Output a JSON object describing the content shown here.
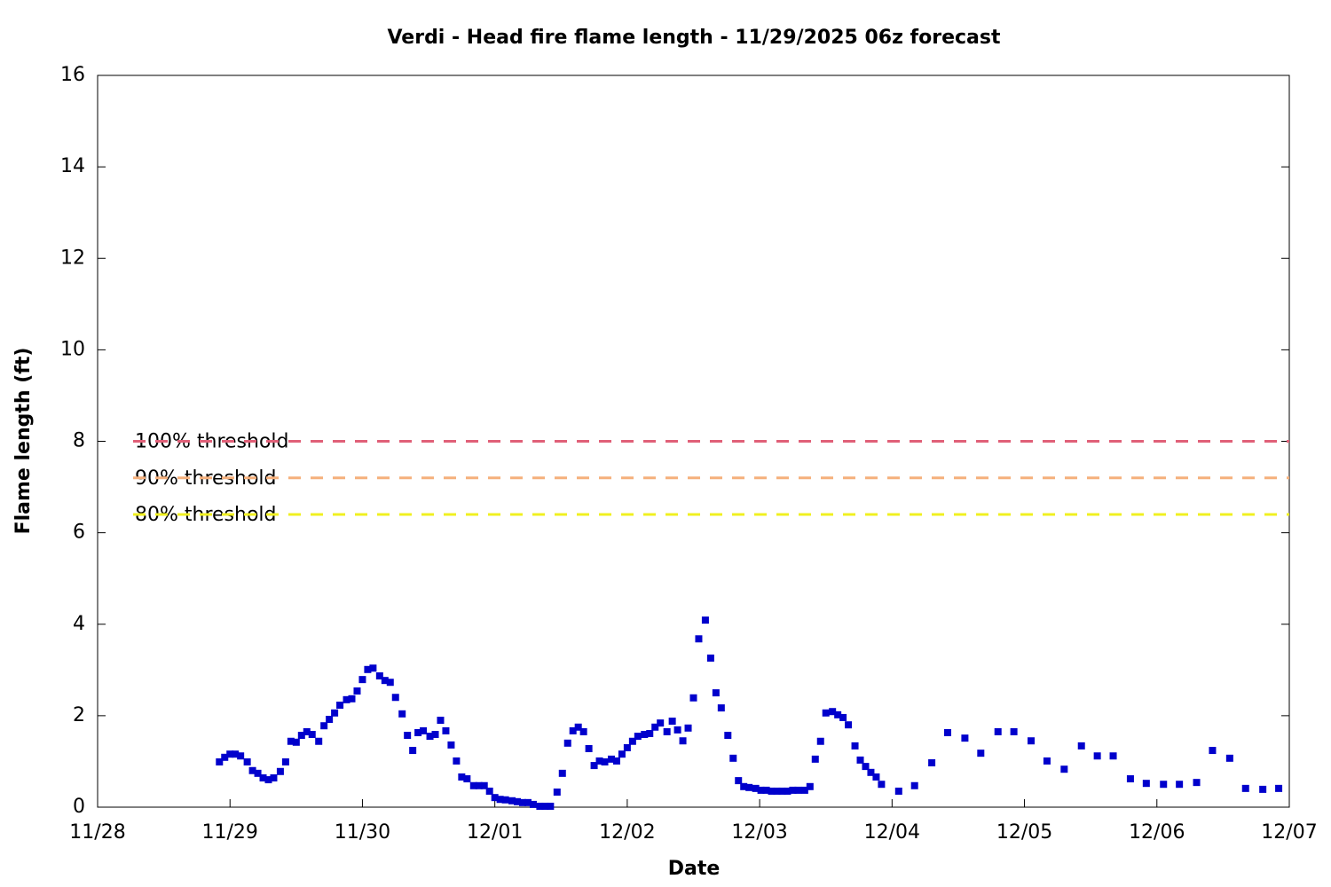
{
  "chart_data": {
    "type": "scatter",
    "title": "Verdi - Head fire flame length - 11/29/2025 06z forecast",
    "xlabel": "Date",
    "ylabel": "Flame length (ft)",
    "xlim": [
      0,
      9
    ],
    "xticks": [
      {
        "value": 0,
        "label": "11/28"
      },
      {
        "value": 1,
        "label": "11/29"
      },
      {
        "value": 2,
        "label": "11/30"
      },
      {
        "value": 3,
        "label": "12/01"
      },
      {
        "value": 4,
        "label": "12/02"
      },
      {
        "value": 5,
        "label": "12/03"
      },
      {
        "value": 6,
        "label": "12/04"
      },
      {
        "value": 7,
        "label": "12/05"
      },
      {
        "value": 8,
        "label": "12/06"
      },
      {
        "value": 9,
        "label": "12/07"
      }
    ],
    "ylim": [
      0,
      16
    ],
    "yticks": [
      0,
      2,
      4,
      6,
      8,
      10,
      12,
      14,
      16
    ],
    "thresholds": [
      {
        "name": "100% threshold",
        "value": 8,
        "color": "#e06078"
      },
      {
        "name": "90% threshold",
        "value": 7.2,
        "color": "#f5b07c"
      },
      {
        "name": "80% threshold",
        "value": 6.4,
        "color": "#f0f020"
      }
    ],
    "x": [
      0.92,
      0.96,
      1.0,
      1.04,
      1.08,
      1.13,
      1.17,
      1.21,
      1.25,
      1.29,
      1.33,
      1.38,
      1.42,
      1.46,
      1.5,
      1.54,
      1.58,
      1.62,
      1.67,
      1.71,
      1.75,
      1.79,
      1.83,
      1.88,
      1.92,
      1.96,
      2.0,
      2.04,
      2.08,
      2.13,
      2.17,
      2.21,
      2.25,
      2.3,
      2.34,
      2.38,
      2.42,
      2.46,
      2.51,
      2.55,
      2.59,
      2.63,
      2.67,
      2.71,
      2.75,
      2.79,
      2.84,
      2.88,
      2.92,
      2.96,
      3.0,
      3.04,
      3.08,
      3.13,
      3.17,
      3.21,
      3.25,
      3.29,
      3.34,
      3.38,
      3.42,
      3.47,
      3.51,
      3.55,
      3.59,
      3.63,
      3.67,
      3.71,
      3.75,
      3.79,
      3.83,
      3.88,
      3.92,
      3.96,
      4.0,
      4.04,
      4.08,
      4.13,
      4.17,
      4.21,
      4.25,
      4.3,
      4.34,
      4.38,
      4.42,
      4.46,
      4.5,
      4.54,
      4.59,
      4.63,
      4.67,
      4.71,
      4.76,
      4.8,
      4.84,
      4.88,
      4.92,
      4.97,
      5.01,
      5.05,
      5.09,
      5.13,
      5.17,
      5.21,
      5.25,
      5.29,
      5.34,
      5.38,
      5.42,
      5.46,
      5.5,
      5.55,
      5.59,
      5.63,
      5.67,
      5.72,
      5.76,
      5.8,
      5.84,
      5.88,
      5.92,
      6.05,
      6.17,
      6.3,
      6.42,
      6.55,
      6.67,
      6.8,
      6.92,
      7.05,
      7.17,
      7.3,
      7.43,
      7.55,
      7.67,
      7.8,
      7.92,
      8.05,
      8.17,
      8.3,
      8.42,
      8.55,
      8.67,
      8.8,
      8.92
    ],
    "series": [
      {
        "color": "#0000cc",
        "values": [
          0.99,
          1.09,
          1.16,
          1.16,
          1.12,
          0.99,
          0.8,
          0.74,
          0.64,
          0.6,
          0.64,
          0.78,
          0.99,
          1.44,
          1.42,
          1.57,
          1.65,
          1.59,
          1.44,
          1.78,
          1.92,
          2.06,
          2.23,
          2.35,
          2.37,
          2.54,
          2.79,
          3.01,
          3.04,
          2.87,
          2.77,
          2.73,
          2.4,
          2.04,
          1.57,
          1.24,
          1.63,
          1.67,
          1.55,
          1.59,
          1.9,
          1.67,
          1.36,
          1.01,
          0.66,
          0.62,
          0.47,
          0.47,
          0.47,
          0.35,
          0.21,
          0.17,
          0.16,
          0.14,
          0.12,
          0.1,
          0.1,
          0.06,
          0.02,
          0.02,
          0.02,
          0.33,
          0.74,
          1.4,
          1.67,
          1.75,
          1.65,
          1.28,
          0.91,
          1.01,
          0.99,
          1.05,
          1.01,
          1.16,
          1.3,
          1.44,
          1.55,
          1.59,
          1.61,
          1.75,
          1.84,
          1.65,
          1.88,
          1.69,
          1.45,
          1.73,
          2.39,
          3.68,
          4.09,
          3.26,
          2.5,
          2.17,
          1.57,
          1.07,
          0.58,
          0.45,
          0.43,
          0.41,
          0.37,
          0.37,
          0.35,
          0.35,
          0.35,
          0.35,
          0.37,
          0.37,
          0.37,
          0.45,
          1.05,
          1.44,
          2.06,
          2.09,
          2.02,
          1.96,
          1.8,
          1.34,
          1.03,
          0.89,
          0.76,
          0.66,
          0.5,
          0.35,
          0.47,
          0.97,
          1.63,
          1.51,
          1.18,
          1.65,
          1.65,
          1.45,
          1.01,
          0.83,
          1.34,
          1.12,
          1.12,
          0.62,
          0.52,
          0.5,
          0.5,
          0.54,
          1.24,
          1.07,
          0.41,
          0.39,
          0.41
        ]
      }
    ]
  }
}
